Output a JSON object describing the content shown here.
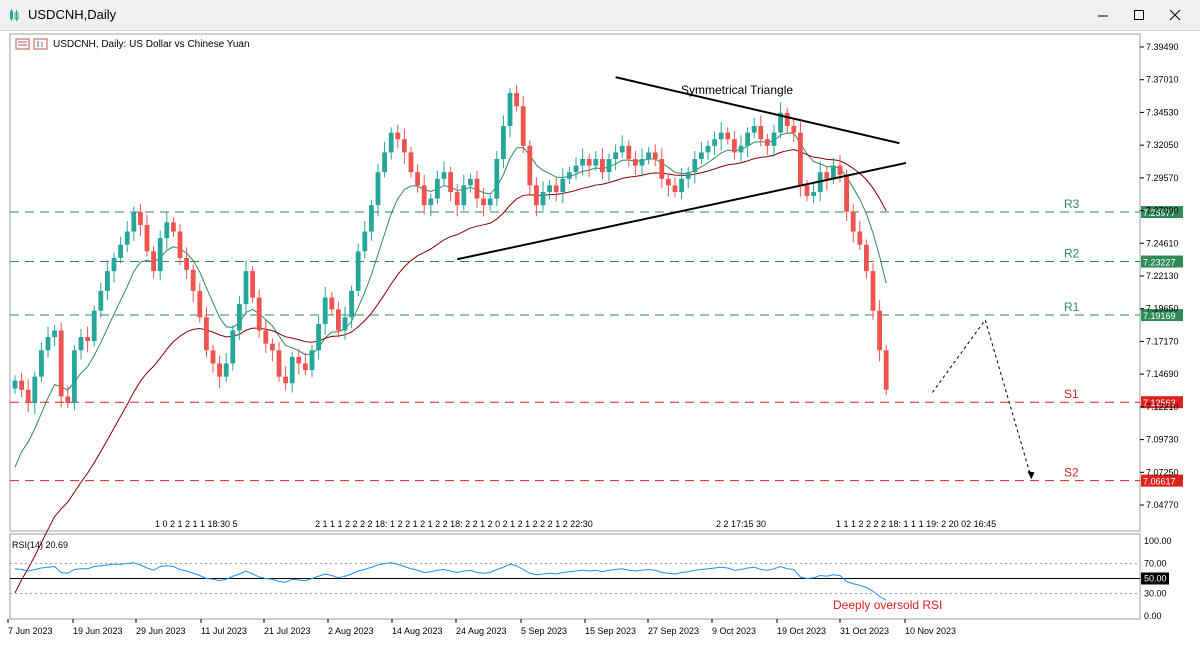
{
  "window": {
    "title": "USDCNH,Daily",
    "controls": [
      "minimize",
      "maximize",
      "close"
    ]
  },
  "chart_header": {
    "text": "USDCNH, Daily:  US Dollar vs Chinese Yuan"
  },
  "colors": {
    "bull": "#26a69a",
    "bear": "#ef5350",
    "resistance": "#2e8b57",
    "support": "#e0201f",
    "ema_fast": "#2e8b57",
    "ema_slow": "#8b0000",
    "rsi": "#1e90ff"
  },
  "chart_data": {
    "type": "candlestick",
    "symbol": "USDCNH",
    "timeframe": "Daily",
    "y_axis": {
      "min": 7.0477,
      "max": 7.3949,
      "ticks": [
        "7.39490",
        "7.37010",
        "7.34530",
        "7.32050",
        "7.29570",
        "7.27090",
        "7.24610",
        "7.22130",
        "7.19650",
        "7.17170",
        "7.14690",
        "7.12210",
        "7.09730",
        "7.07250",
        "7.04770"
      ],
      "tick_values": [
        7.3949,
        7.3701,
        7.3453,
        7.3205,
        7.2957,
        7.2709,
        7.2461,
        7.2213,
        7.1965,
        7.1717,
        7.1469,
        7.1221,
        7.0973,
        7.0725,
        7.0477
      ]
    },
    "x_axis": {
      "labels": [
        "7 Jun 2023",
        "19 Jun 2023",
        "29 Jun 2023",
        "11 Jul 2023",
        "21 Jul 2023",
        "2 Aug 2023",
        "14 Aug 2023",
        "24 Aug 2023",
        "5 Sep 2023",
        "15 Sep 2023",
        "27 Sep 2023",
        "9 Oct 2023",
        "19 Oct 2023",
        "31 Oct 2023",
        "10 Nov 2023"
      ]
    },
    "closes": [
      7.142,
      7.135,
      7.125,
      7.145,
      7.165,
      7.175,
      7.18,
      7.13,
      7.125,
      7.165,
      7.175,
      7.172,
      7.195,
      7.21,
      7.225,
      7.235,
      7.245,
      7.255,
      7.27,
      7.26,
      7.24,
      7.225,
      7.25,
      7.262,
      7.255,
      7.235,
      7.226,
      7.21,
      7.19,
      7.165,
      7.155,
      7.145,
      7.155,
      7.18,
      7.2,
      7.225,
      7.205,
      7.18,
      7.17,
      7.165,
      7.145,
      7.14,
      7.16,
      7.155,
      7.15,
      7.165,
      7.185,
      7.205,
      7.196,
      7.18,
      7.19,
      7.21,
      7.24,
      7.255,
      7.275,
      7.3,
      7.315,
      7.33,
      7.325,
      7.315,
      7.3,
      7.29,
      7.275,
      7.28,
      7.295,
      7.3,
      7.285,
      7.275,
      7.29,
      7.295,
      7.28,
      7.275,
      7.28,
      7.31,
      7.335,
      7.36,
      7.35,
      7.32,
      7.29,
      7.275,
      7.285,
      7.29,
      7.285,
      7.295,
      7.3,
      7.305,
      7.31,
      7.305,
      7.31,
      7.3,
      7.31,
      7.315,
      7.32,
      7.31,
      7.305,
      7.31,
      7.315,
      7.31,
      7.295,
      7.29,
      7.285,
      7.295,
      7.3,
      7.31,
      7.315,
      7.32,
      7.325,
      7.33,
      7.325,
      7.315,
      7.32,
      7.33,
      7.335,
      7.325,
      7.32,
      7.33,
      7.345,
      7.335,
      7.33,
      7.29,
      7.282,
      7.285,
      7.3,
      7.295,
      7.305,
      7.298,
      7.27,
      7.255,
      7.245,
      7.225,
      7.195,
      7.165,
      7.135
    ],
    "series": [
      {
        "key": "price",
        "type": "candlestick"
      },
      {
        "key": "ema_fast",
        "type": "line"
      },
      {
        "key": "ema_slow",
        "type": "line"
      }
    ],
    "levels": [
      {
        "label": "R3",
        "value": 7.26977,
        "display": "7.26977",
        "kind": "resistance"
      },
      {
        "label": "R2",
        "value": 7.23227,
        "display": "7.23227",
        "kind": "resistance"
      },
      {
        "label": "R1",
        "value": 7.19169,
        "display": "7.19169",
        "kind": "resistance"
      },
      {
        "label": "S1",
        "value": 7.12563,
        "display": "7.12563",
        "kind": "support"
      },
      {
        "label": "S2",
        "value": 7.06617,
        "display": "7.06617",
        "kind": "support"
      }
    ],
    "annotations": [
      {
        "text": "Symmetrical Triangle"
      },
      {
        "text": "Deeply oversold RSI"
      }
    ],
    "pattern": {
      "upper_line": [
        {
          "i": 91,
          "y": 7.372
        },
        {
          "i": 134,
          "y": 7.322
        }
      ],
      "lower_line": [
        {
          "i": 67,
          "y": 7.234
        },
        {
          "i": 135,
          "y": 7.307
        }
      ]
    },
    "projection": [
      {
        "i": 139,
        "y": 7.133
      },
      {
        "i": 147,
        "y": 7.188
      },
      {
        "i": 154,
        "y": 7.068
      }
    ],
    "session_labels": [
      "1 0 2 1 2 1 1 18:30 5",
      "2 1 1 1 2 2 2 2 18: 1 2 2 1 2 1 2 2 18: 2 2 1 2 0 2 1 2 1 2 2 2 1 2 22:30",
      "2 2 17:15 30",
      "1 1 1 2 2 2 2 18: 1 1 1 19: 2 20 02 16:45"
    ],
    "rsi": {
      "label": "RSI(14) 20.69",
      "value": 20.69,
      "ticks": [
        "100.00",
        "70.00",
        "50.00",
        "30.00",
        "0.00"
      ],
      "tick_values": [
        100,
        70,
        50,
        30,
        0
      ],
      "levels": [
        70,
        50,
        30
      ],
      "marked_level": "50.00",
      "values": [
        63,
        62,
        60,
        62,
        64,
        65,
        66,
        58,
        57,
        62,
        63,
        63,
        66,
        67,
        68,
        69,
        69,
        70,
        71,
        68,
        64,
        61,
        66,
        67,
        66,
        62,
        60,
        57,
        54,
        50,
        49,
        47,
        49,
        53,
        56,
        60,
        56,
        52,
        50,
        49,
        46,
        45,
        49,
        48,
        47,
        50,
        53,
        56,
        54,
        51,
        53,
        56,
        60,
        62,
        65,
        68,
        70,
        71,
        69,
        66,
        63,
        61,
        58,
        59,
        61,
        62,
        60,
        58,
        60,
        61,
        58,
        57,
        58,
        62,
        65,
        69,
        67,
        62,
        57,
        55,
        56,
        57,
        56,
        58,
        59,
        60,
        61,
        60,
        61,
        59,
        61,
        62,
        63,
        61,
        60,
        61,
        62,
        61,
        58,
        57,
        56,
        58,
        59,
        61,
        62,
        63,
        64,
        65,
        64,
        61,
        62,
        64,
        65,
        62,
        61,
        63,
        66,
        63,
        62,
        52,
        50,
        51,
        54,
        53,
        55,
        54,
        46,
        43,
        41,
        38,
        33,
        26,
        21
      ]
    }
  }
}
